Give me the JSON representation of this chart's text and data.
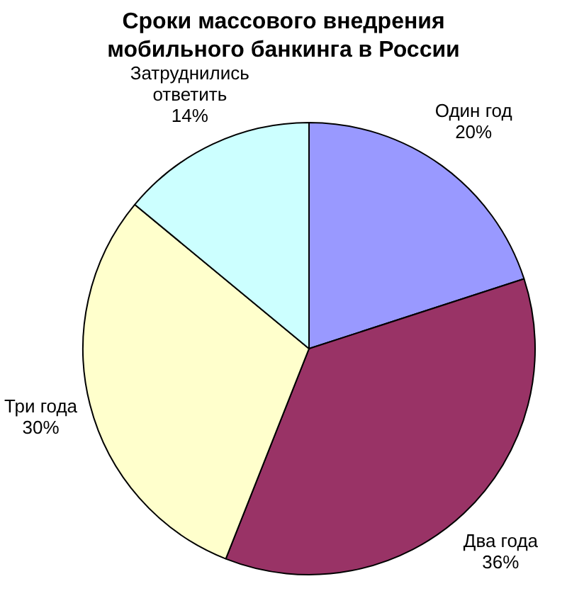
{
  "chart_data": {
    "type": "pie",
    "title": "Сроки массового внедрения мобильного банкинга в России",
    "categories": [
      "Один год",
      "Два года",
      "Три года",
      "Затруднились ответить"
    ],
    "values": [
      20,
      36,
      30,
      14
    ],
    "colors": [
      "#9999ff",
      "#993366",
      "#ffffcc",
      "#ccffff"
    ],
    "value_labels": [
      "20%",
      "36%",
      "30%",
      "14%"
    ],
    "legend": false
  }
}
